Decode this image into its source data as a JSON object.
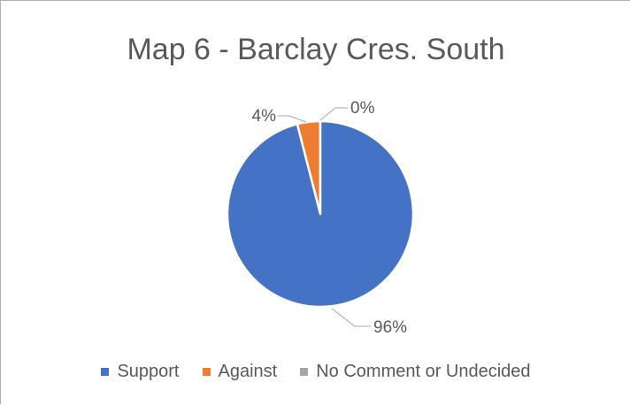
{
  "chart_data": {
    "type": "pie",
    "title": "Map 6 - Barclay Cres. South",
    "categories": [
      "Support",
      "Against",
      "No Comment or Undecided"
    ],
    "values": [
      96,
      4,
      0
    ],
    "data_labels": [
      "96%",
      "4%",
      "0%"
    ],
    "colors": [
      "#4472C4",
      "#ED7D31",
      "#A5A5A5"
    ],
    "legend_position": "bottom"
  }
}
